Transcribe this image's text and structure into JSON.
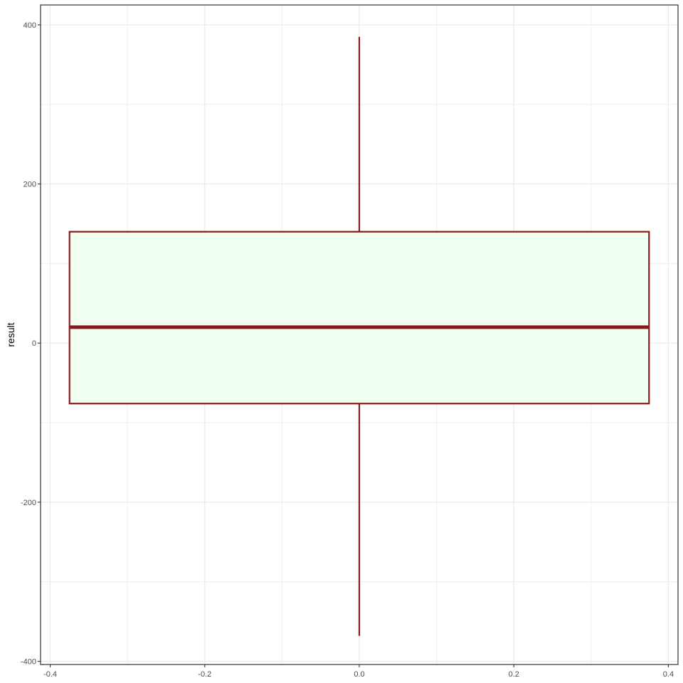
{
  "chart_data": {
    "type": "boxplot",
    "title": "",
    "xlabel": "",
    "ylabel": "result",
    "xlim": [
      -0.4125,
      0.4125
    ],
    "ylim": [
      -404,
      425
    ],
    "x_ticks": [
      -0.4,
      -0.2,
      0.0,
      0.2,
      0.4
    ],
    "x_tick_labels": [
      "-0.4",
      "-0.2",
      "0.0",
      "0.2",
      "0.4"
    ],
    "y_ticks": [
      -400,
      -200,
      0,
      200,
      400
    ],
    "y_tick_labels": [
      "-400",
      "-200",
      "0",
      "200",
      "400"
    ],
    "y_minor_ticks": [
      -300,
      -100,
      100,
      300
    ],
    "x_minor_ticks": [
      -0.3,
      -0.1,
      0.1,
      0.3
    ],
    "grid": true,
    "legend": "none",
    "box": {
      "x_center": 0.0,
      "x_min": -0.375,
      "x_max": 0.375,
      "whisker_low": -368,
      "q1": -76,
      "median": 20,
      "q3": 140,
      "whisker_high": 385
    },
    "colors": {
      "box_stroke": "#8B1A1A",
      "box_fill": "#F0FFF0",
      "grid": "#EBEBEB",
      "panel_border": "#333333"
    }
  }
}
